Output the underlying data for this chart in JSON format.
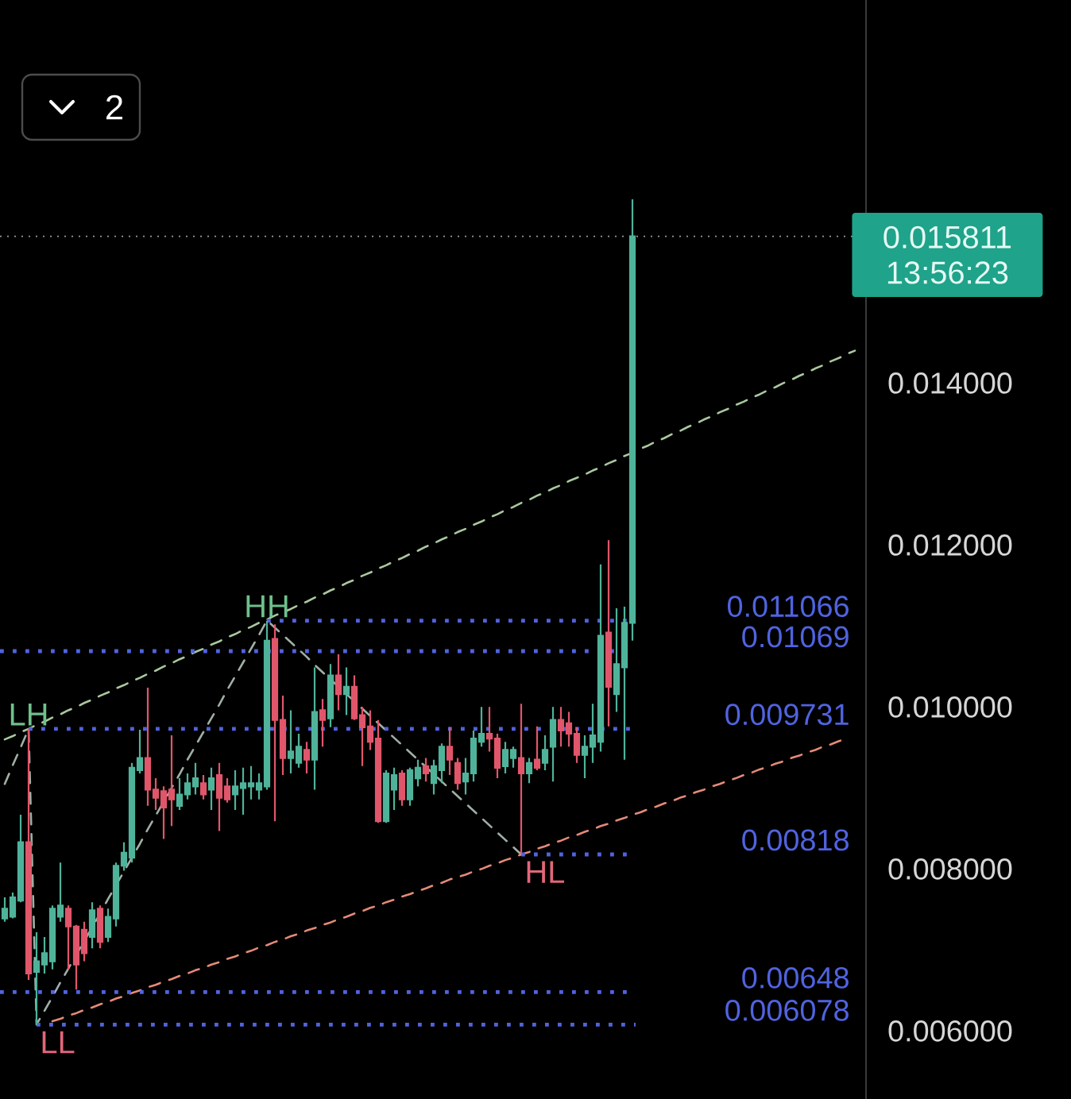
{
  "chart_data": {
    "type": "candlestick",
    "categories": [
      null,
      null,
      null,
      null,
      null,
      null,
      null,
      null,
      null,
      null,
      null,
      null,
      null,
      null,
      null,
      null,
      null,
      null,
      null,
      null,
      null,
      null,
      null,
      null,
      null,
      null,
      null,
      null,
      null,
      null,
      null,
      null,
      null,
      null,
      null,
      null,
      null,
      null,
      null,
      null,
      null,
      null,
      null,
      null,
      null,
      null,
      null,
      null,
      null,
      null,
      null,
      null,
      null,
      null,
      null,
      null,
      null,
      null,
      null,
      null,
      null,
      null,
      null,
      null,
      null,
      null,
      null,
      null,
      null,
      null,
      null,
      null,
      null,
      null,
      null,
      null,
      null,
      null,
      null,
      null,
      null,
      null,
      null,
      null,
      null,
      null,
      null,
      null,
      null,
      null,
      null,
      null,
      null,
      null,
      null,
      null,
      null,
      null,
      null,
      null,
      null,
      null,
      null,
      null,
      null,
      null,
      null,
      null
    ],
    "ohlc": [
      [
        0.00739,
        0.00765,
        0.00735,
        0.00751
      ],
      [
        0.00741,
        0.00771,
        0.00739,
        0.00765
      ],
      [
        0.00761,
        0.00867,
        0.00759,
        0.00833
      ],
      [
        0.00833,
        0.009731,
        0.00663,
        0.00671
      ],
      [
        0.00673,
        0.00722,
        0.006078,
        0.00686
      ],
      [
        0.00682,
        0.00716,
        0.00671,
        0.00696
      ],
      [
        0.00686,
        0.00755,
        0.00676,
        0.00751
      ],
      [
        0.00741,
        0.00808,
        0.00735,
        0.00755
      ],
      [
        0.00751,
        0.00755,
        0.00676,
        0.00729
      ],
      [
        0.00729,
        0.00731,
        0.00651,
        0.00682
      ],
      [
        0.00725,
        0.00735,
        0.00686,
        0.00696
      ],
      [
        0.00716,
        0.00759,
        0.00702,
        0.00749
      ],
      [
        0.00751,
        0.00755,
        0.00702,
        0.0071
      ],
      [
        0.00716,
        0.00751,
        0.0071,
        0.00741
      ],
      [
        0.00739,
        0.00808,
        0.00729,
        0.00804
      ],
      [
        0.00804,
        0.00833,
        0.00798,
        0.0082
      ],
      [
        0.00814,
        0.00931,
        0.00808,
        0.00925
      ],
      [
        0.00922,
        0.00972,
        0.00918,
        0.00937
      ],
      [
        0.00937,
        0.01024,
        0.00878,
        0.00898
      ],
      [
        0.00898,
        0.00912,
        0.00873,
        0.00888
      ],
      [
        0.00896,
        0.00902,
        0.00837,
        0.00876
      ],
      [
        0.00898,
        0.00965,
        0.00853,
        0.00886
      ],
      [
        0.00878,
        0.00912,
        0.00873,
        0.00892
      ],
      [
        0.00892,
        0.00918,
        0.00886,
        0.00906
      ],
      [
        0.00902,
        0.00931,
        0.00892,
        0.00912
      ],
      [
        0.00906,
        0.00916,
        0.00886,
        0.00892
      ],
      [
        0.00898,
        0.00925,
        0.00873,
        0.00912
      ],
      [
        0.00916,
        0.00931,
        0.00847,
        0.00888
      ],
      [
        0.00902,
        0.00912,
        0.00882,
        0.00886
      ],
      [
        0.00892,
        0.00922,
        0.00873,
        0.00902
      ],
      [
        0.009,
        0.00925,
        0.00867,
        0.00906
      ],
      [
        0.00902,
        0.00927,
        0.00886,
        0.00906
      ],
      [
        0.00898,
        0.00918,
        0.00886,
        0.00906
      ],
      [
        0.00902,
        0.011066,
        0.00898,
        0.01082
      ],
      [
        0.01084,
        0.01102,
        0.00859,
        0.00984
      ],
      [
        0.00984,
        0.01014,
        0.00916,
        0.00937
      ],
      [
        0.00937,
        0.00996,
        0.00918,
        0.00945
      ],
      [
        0.00931,
        0.00967,
        0.00925,
        0.00951
      ],
      [
        0.00947,
        0.00957,
        0.00918,
        0.00935
      ],
      [
        0.00935,
        0.01049,
        0.00898,
        0.00994
      ],
      [
        0.00996,
        0.0101,
        0.00951,
        0.00984
      ],
      [
        0.00986,
        0.01053,
        0.00975,
        0.01039
      ],
      [
        0.01039,
        0.01065,
        0.00996,
        0.01016
      ],
      [
        0.01016,
        0.01049,
        0.0099,
        0.01025
      ],
      [
        0.01025,
        0.01039,
        0.00984,
        0.00986
      ],
      [
        0.0099,
        0.01,
        0.00927,
        0.00975
      ],
      [
        0.00976,
        0.00996,
        0.00947,
        0.00957
      ],
      [
        0.00961,
        0.00984,
        0.00857,
        0.00859
      ],
      [
        0.00859,
        0.00922,
        0.00857,
        0.00918
      ],
      [
        0.00898,
        0.00925,
        0.00873,
        0.00916
      ],
      [
        0.00918,
        0.00922,
        0.00878,
        0.00886
      ],
      [
        0.00886,
        0.00925,
        0.00878,
        0.00922
      ],
      [
        0.00912,
        0.00935,
        0.00902,
        0.00925
      ],
      [
        0.00927,
        0.00937,
        0.00908,
        0.00918
      ],
      [
        0.00906,
        0.00935,
        0.00892,
        0.00927
      ],
      [
        0.00922,
        0.00955,
        0.00906,
        0.00951
      ],
      [
        0.00951,
        0.00975,
        0.00916,
        0.00935
      ],
      [
        0.00931,
        0.00937,
        0.00898,
        0.00906
      ],
      [
        0.00908,
        0.00937,
        0.00892,
        0.00918
      ],
      [
        0.00918,
        0.00971,
        0.00908,
        0.00961
      ],
      [
        0.00957,
        0.01,
        0.00951,
        0.00967
      ],
      [
        0.00967,
        0.01,
        0.00945,
        0.00961
      ],
      [
        0.00961,
        0.00967,
        0.00912,
        0.00925
      ],
      [
        0.00927,
        0.00957,
        0.00918,
        0.00947
      ],
      [
        0.00937,
        0.00951,
        0.00925,
        0.00947
      ],
      [
        0.00937,
        0.01004,
        0.00818,
        0.00918
      ],
      [
        0.00918,
        0.00937,
        0.00906,
        0.00931
      ],
      [
        0.00935,
        0.00976,
        0.00922,
        0.00925
      ],
      [
        0.00931,
        0.00965,
        0.00922,
        0.00947
      ],
      [
        0.00951,
        0.01,
        0.00908,
        0.00984
      ],
      [
        0.00984,
        0.01,
        0.00951,
        0.00971
      ],
      [
        0.0098,
        0.00994,
        0.00951,
        0.00967
      ],
      [
        0.00967,
        0.00975,
        0.00931,
        0.00941
      ],
      [
        0.00941,
        0.00965,
        0.00912,
        0.00951
      ],
      [
        0.00951,
        0.01004,
        0.00931,
        0.00965
      ],
      [
        0.00957,
        0.01176,
        0.00945,
        0.01088
      ],
      [
        0.01092,
        0.01206,
        0.00976,
        0.01025
      ],
      [
        0.01016,
        0.01122,
        0.00994,
        0.01053
      ],
      [
        0.01049,
        0.01124,
        0.00935,
        0.01104
      ],
      [
        0.01104,
        0.01627,
        0.01082,
        0.015811
      ],
      null,
      null,
      null,
      null,
      null,
      null,
      null,
      null,
      null,
      null,
      null,
      null,
      null,
      null,
      null,
      null,
      null,
      null,
      null,
      null,
      null,
      null,
      null,
      null,
      null,
      null,
      null,
      null
    ],
    "colors": [
      "#4fb39a",
      "#4fb39a",
      "#4fb39a",
      "#e0566b",
      "#4fb39a",
      "#4fb39a",
      "#4fb39a",
      "#4fb39a",
      "#e0566b",
      "#e0566b",
      "#e0566b",
      "#4fb39a",
      "#e0566b",
      "#4fb39a",
      "#4fb39a",
      "#4fb39a",
      "#4fb39a",
      "#4fb39a",
      "#e0566b",
      "#e0566b",
      "#e0566b",
      "#e0566b",
      "#4fb39a",
      "#4fb39a",
      "#4fb39a",
      "#e0566b",
      "#4fb39a",
      "#e0566b",
      "#e0566b",
      "#4fb39a",
      "#4fb39a",
      "#4fb39a",
      "#4fb39a",
      "#4fb39a",
      "#e0566b",
      "#e0566b",
      "#4fb39a",
      "#4fb39a",
      "#e0566b",
      "#4fb39a",
      "#e0566b",
      "#4fb39a",
      "#e0566b",
      "#4fb39a",
      "#e0566b",
      "#e0566b",
      "#e0566b",
      "#e0566b",
      "#4fb39a",
      "#4fb39a",
      "#e0566b",
      "#4fb39a",
      "#4fb39a",
      "#e0566b",
      "#4fb39a",
      "#4fb39a",
      "#e0566b",
      "#e0566b",
      "#4fb39a",
      "#4fb39a",
      "#4fb39a",
      "#e0566b",
      "#e0566b",
      "#4fb39a",
      "#4fb39a",
      "#e0566b",
      "#4fb39a",
      "#e0566b",
      "#4fb39a",
      "#4fb39a",
      "#e0566b",
      "#e0566b",
      "#e0566b",
      "#4fb39a",
      "#4fb39a",
      "#4fb39a",
      "#e0566b",
      "#4fb39a",
      "#4fb39a",
      "#4fb39a",
      null,
      null,
      null,
      null,
      null,
      null,
      null,
      null,
      null,
      null,
      null,
      null,
      null,
      null,
      null,
      null,
      null,
      null,
      null,
      null,
      null,
      null,
      null,
      null,
      null,
      null,
      null,
      null
    ],
    "series": [
      {
        "type": "line",
        "color": "#a9c89d",
        "line_style": "dashed",
        "values": [
          0.0096,
          0.00964,
          0.00969,
          0.00973,
          0.00978,
          0.00982,
          0.00987,
          0.00991,
          0.00996,
          0.01,
          0.01005,
          0.01009,
          0.01014,
          0.01018,
          0.01023,
          0.01027,
          0.01032,
          0.01036,
          0.01041,
          0.01045,
          0.0105,
          0.01054,
          0.01059,
          0.01063,
          0.01068,
          0.01072,
          0.01077,
          0.01081,
          0.01086,
          0.0109,
          0.01095,
          0.01099,
          0.01104,
          0.01108,
          0.01113,
          0.01117,
          0.01121,
          0.01126,
          0.0113,
          0.01135,
          0.01139,
          0.01144,
          0.01148,
          0.01153,
          0.01157,
          0.01162,
          0.01166,
          0.01171,
          0.01175,
          0.0118,
          0.01184,
          0.01189,
          0.01193,
          0.01198,
          0.01202,
          0.01207,
          0.01211,
          0.01216,
          0.0122,
          0.01225,
          0.01229,
          0.01234,
          0.01238,
          0.01243,
          0.01247,
          0.01252,
          0.01256,
          0.01261,
          0.01265,
          0.0127,
          0.01274,
          0.01279,
          0.01283,
          0.01287,
          0.01292,
          0.01296,
          0.01301,
          0.01305,
          0.0131,
          0.01314,
          0.01319,
          0.01323,
          0.01328,
          0.01332,
          0.01337,
          0.01341,
          0.01346,
          0.0135,
          0.01355,
          0.01359,
          0.01364,
          0.01368,
          0.01373,
          0.01377,
          0.01382,
          0.01386,
          0.01391,
          0.01395,
          0.014,
          0.01404,
          0.01409,
          0.01413,
          0.01418,
          0.01422,
          0.01427,
          0.01431,
          0.01436,
          0.0144
        ]
      },
      {
        "type": "line",
        "color": "#e58a78",
        "line_style": "dashed",
        "values": [
          null,
          null,
          null,
          null,
          null,
          null,
          0.00612,
          0.00615,
          0.00619,
          0.00622,
          0.00626,
          0.00629,
          0.00633,
          0.00636,
          0.0064,
          0.00643,
          0.00647,
          0.0065,
          0.00654,
          0.00657,
          0.00661,
          0.00664,
          0.00668,
          0.00671,
          0.00675,
          0.00678,
          0.00682,
          0.00685,
          0.00689,
          0.00692,
          0.00696,
          0.00699,
          0.00703,
          0.00706,
          0.0071,
          0.00713,
          0.00717,
          0.0072,
          0.00724,
          0.00727,
          0.00731,
          0.00734,
          0.00738,
          0.00741,
          0.00745,
          0.00748,
          0.00752,
          0.00755,
          0.00759,
          0.00762,
          0.00766,
          0.00769,
          0.00773,
          0.00776,
          0.0078,
          0.00783,
          0.00787,
          0.0079,
          0.00793,
          0.00797,
          0.008,
          0.00804,
          0.00807,
          0.00811,
          0.00814,
          0.00818,
          0.00821,
          0.00825,
          0.00828,
          0.00832,
          0.00835,
          0.00839,
          0.00842,
          0.00846,
          0.00849,
          0.00853,
          0.00856,
          0.0086,
          0.00863,
          0.00867,
          0.0087,
          0.00874,
          0.00877,
          0.00881,
          0.00884,
          0.00888,
          0.00891,
          0.00895,
          0.00898,
          0.00902,
          0.00905,
          0.00909,
          0.00912,
          0.00916,
          0.00919,
          0.00923,
          0.00926,
          0.0093,
          0.00933,
          0.00937,
          0.0094,
          0.00944,
          0.00947,
          0.00951,
          0.00954,
          0.00958,
          0.00961,
          null
        ]
      },
      {
        "type": "line",
        "color": "#9fb0a4",
        "line_style": "dashed",
        "values": [
          0.00905,
          0.00928,
          0.0095,
          0.00973,
          0.00608,
          0.00625,
          0.00642,
          0.0066,
          0.00677,
          0.00694,
          0.00711,
          0.00728,
          0.00745,
          0.00763,
          0.0078,
          0.00797,
          0.00814,
          0.00831,
          0.00849,
          0.00866,
          0.00883,
          0.009,
          0.00917,
          0.00935,
          0.00952,
          0.00969,
          0.00986,
          0.01003,
          0.01021,
          0.01038,
          0.01055,
          0.01072,
          0.01089,
          0.01107,
          0.01098,
          0.01089,
          0.0108,
          0.01071,
          0.01062,
          0.01052,
          0.01043,
          0.01034,
          0.01025,
          0.01016,
          0.01007,
          0.00998,
          0.00989,
          0.0098,
          0.00971,
          0.00962,
          0.00953,
          0.00944,
          0.00935,
          0.00926,
          0.00917,
          0.00908,
          0.00899,
          0.0089,
          0.00881,
          0.00872,
          0.00863,
          0.00854,
          0.00845,
          0.00836,
          0.00827,
          0.00818,
          null,
          null,
          null,
          null,
          null,
          null,
          null,
          null,
          null,
          null,
          null,
          null,
          null,
          null,
          null,
          null,
          null,
          null,
          null,
          null,
          null,
          null,
          null,
          null,
          null,
          null,
          null,
          null,
          null,
          null,
          null,
          null,
          null,
          null,
          null,
          null,
          null,
          null,
          null,
          null,
          null,
          null
        ]
      }
    ],
    "ref_lines": [
      {
        "axis": "y",
        "value": 0.011066,
        "label": "0.011066",
        "color": "#5063e0",
        "line_style": "dotted"
      },
      {
        "axis": "y",
        "value": 0.01069,
        "label": "0.01069",
        "color": "#5063e0",
        "line_style": "dotted"
      },
      {
        "axis": "y",
        "value": 0.009731,
        "label": "0.009731",
        "color": "#5063e0",
        "line_style": "dotted"
      },
      {
        "axis": "y",
        "value": 0.00818,
        "label": "0.00818",
        "color": "#5063e0",
        "line_style": "dotted"
      },
      {
        "axis": "y",
        "value": 0.00648,
        "label": "0.00648",
        "color": "#5063e0",
        "line_style": "dotted"
      },
      {
        "axis": "y",
        "value": 0.006078,
        "label": "0.006078",
        "color": "#5063e0",
        "line_style": "dotted"
      },
      {
        "axis": "y",
        "value": 0.015811,
        "label": "0.015811",
        "color": "#9a9a9a",
        "line_style": "dotted"
      }
    ],
    "annotations": [
      {
        "text": "LH",
        "y": 0.009731
      },
      {
        "text": "HH",
        "y": 0.011066
      },
      {
        "text": "HL",
        "y": 0.00818
      },
      {
        "text": "LL",
        "y": 0.006078
      },
      "13:56:23",
      "2"
    ],
    "ylim": [
      0.00516,
      0.01873
    ],
    "yticks": [
      {
        "value": 0.006,
        "label": "0.006000"
      },
      {
        "value": 0.008,
        "label": "0.008000"
      },
      {
        "value": 0.01,
        "label": "0.010000"
      },
      {
        "value": 0.012,
        "label": "0.012000"
      },
      {
        "value": 0.014,
        "label": "0.014000"
      }
    ]
  }
}
